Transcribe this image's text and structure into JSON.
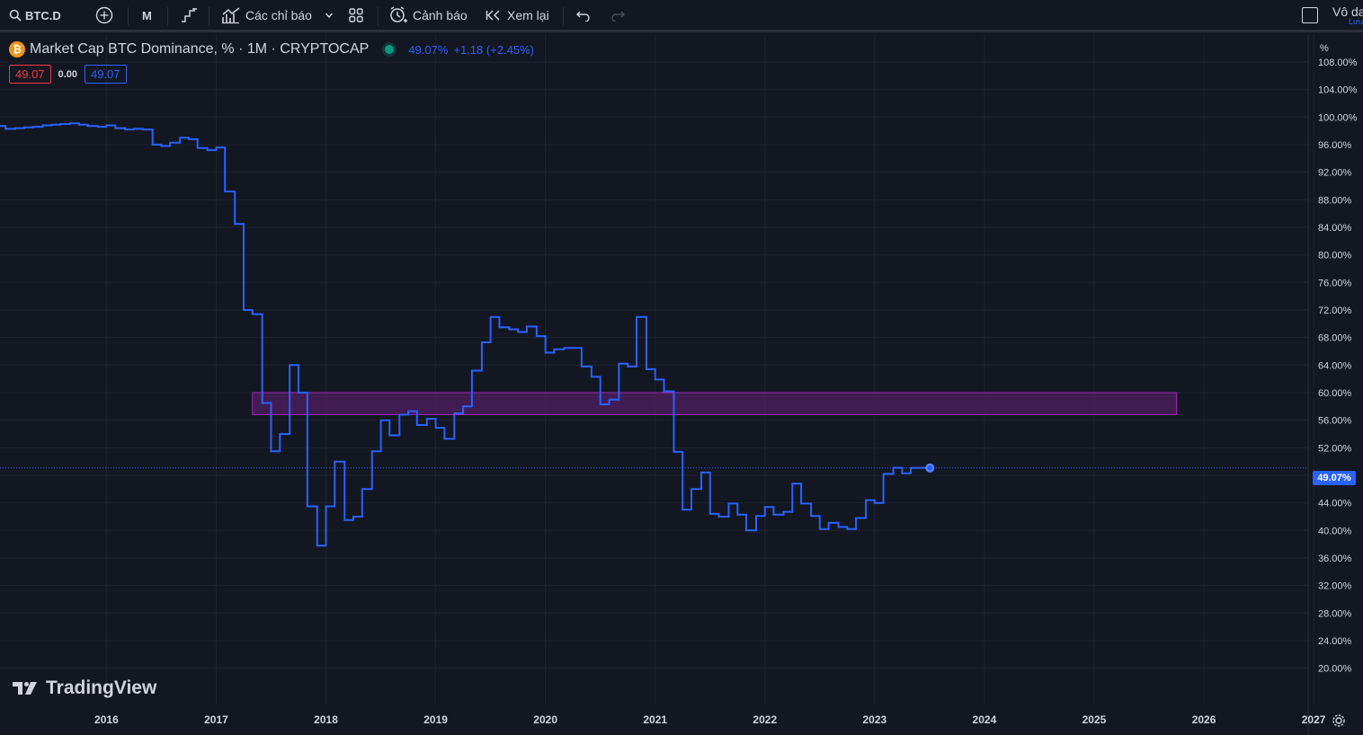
{
  "toolbar": {
    "symbol": "BTC.D",
    "interval": "M",
    "indicators_label": "Các chỉ báo",
    "alert_label": "Cảnh báo",
    "replay_label": "Xem lại",
    "right_label": "Vô da",
    "right_sub": "Lưu"
  },
  "legend": {
    "title": "Market Cap BTC Dominance, % · 1M · CRYPTOCAP",
    "last": "49.07%",
    "change": "+1.18 (+2.45%)",
    "bid": "49.07",
    "spread": "0.00",
    "ask": "49.07"
  },
  "branding": {
    "name": "TradingView"
  },
  "price_tag": "49.07%",
  "colors": {
    "line": "#2962ff",
    "zone_fill": "#4a1d5c",
    "zone_border": "#9c27b0",
    "bg": "#131722"
  },
  "chart_data": {
    "type": "line",
    "title": "Market Cap BTC Dominance, % · 1M · CRYPTOCAP",
    "ylabel": "%",
    "ylim": [
      18,
      108
    ],
    "xlim": [
      2015.03,
      2026.95
    ],
    "grid": true,
    "step": true,
    "x_ticks": [
      "2016",
      "2017",
      "2018",
      "2019",
      "2020",
      "2021",
      "2022",
      "2023",
      "2024",
      "2025",
      "2026",
      "2027"
    ],
    "y_ticks": [
      "20.00%",
      "24.00%",
      "28.00%",
      "32.00%",
      "36.00%",
      "40.00%",
      "44.00%",
      "48.00%",
      "52.00%",
      "56.00%",
      "60.00%",
      "64.00%",
      "68.00%",
      "72.00%",
      "76.00%",
      "80.00%",
      "84.00%",
      "88.00%",
      "92.00%",
      "96.00%",
      "100.00%",
      "104.00%",
      "108.00%"
    ],
    "series": [
      {
        "x": [
          2015.0,
          2015.08,
          2015.17,
          2015.25,
          2015.33,
          2015.42,
          2015.5,
          2015.58,
          2015.67,
          2015.75,
          2015.83,
          2015.92,
          2016.0,
          2016.08,
          2016.17,
          2016.25,
          2016.33,
          2016.42,
          2016.5,
          2016.58,
          2016.67,
          2016.75,
          2016.83,
          2016.92,
          2017.0,
          2017.08,
          2017.17,
          2017.25,
          2017.33,
          2017.42,
          2017.5,
          2017.58,
          2017.67,
          2017.75,
          2017.83,
          2017.92,
          2018.0,
          2018.08,
          2018.17,
          2018.25,
          2018.33,
          2018.42,
          2018.5,
          2018.58,
          2018.67,
          2018.75,
          2018.83,
          2018.92,
          2019.0,
          2019.08,
          2019.17,
          2019.25,
          2019.33,
          2019.42,
          2019.5,
          2019.58,
          2019.67,
          2019.75,
          2019.83,
          2019.92,
          2020.0,
          2020.08,
          2020.17,
          2020.25,
          2020.33,
          2020.42,
          2020.5,
          2020.58,
          2020.67,
          2020.75,
          2020.83,
          2020.92,
          2021.0,
          2021.08,
          2021.17,
          2021.25,
          2021.33,
          2021.42,
          2021.5,
          2021.58,
          2021.67,
          2021.75,
          2021.83,
          2021.92,
          2022.0,
          2022.08,
          2022.17,
          2022.25,
          2022.33,
          2022.42,
          2022.5,
          2022.58,
          2022.67,
          2022.75,
          2022.83,
          2022.92,
          2023.0,
          2023.08,
          2023.17,
          2023.25,
          2023.33,
          2023.42
        ],
        "y": [
          98.7,
          98.3,
          98.4,
          98.5,
          98.6,
          98.8,
          98.9,
          99.0,
          99.1,
          98.9,
          98.7,
          98.6,
          98.8,
          98.4,
          98.2,
          98.3,
          98.2,
          96.0,
          95.8,
          96.3,
          97.0,
          96.8,
          95.5,
          95.2,
          95.6,
          89.2,
          84.5,
          72.0,
          71.4,
          58.5,
          51.5,
          54.0,
          64.0,
          60.0,
          43.5,
          37.8,
          43.5,
          50.0,
          41.5,
          42.0,
          46.0,
          51.5,
          56.0,
          53.8,
          56.8,
          57.3,
          55.3,
          56.2,
          54.9,
          53.3,
          57.0,
          58.0,
          63.2,
          67.3,
          71.0,
          69.5,
          69.2,
          68.8,
          69.6,
          68.2,
          65.8,
          66.3,
          66.5,
          66.5,
          63.8,
          62.3,
          58.3,
          59.0,
          64.2,
          63.8,
          71.0,
          63.4,
          61.9,
          60.2,
          51.4,
          43.0,
          46.0,
          48.4,
          42.4,
          42.0,
          43.9,
          42.3,
          40.0,
          42.1,
          43.4,
          42.3,
          42.7,
          46.8,
          43.9,
          42.1,
          40.2,
          41.1,
          40.5,
          40.2,
          41.8,
          44.4,
          44.0,
          48.2,
          49.1,
          48.3,
          49.07,
          49.07
        ]
      }
    ],
    "zone": {
      "x_start": 2017.33,
      "x_end": 2025.75,
      "y_low": 56.8,
      "y_high": 60.0
    },
    "last_value": 49.07
  }
}
